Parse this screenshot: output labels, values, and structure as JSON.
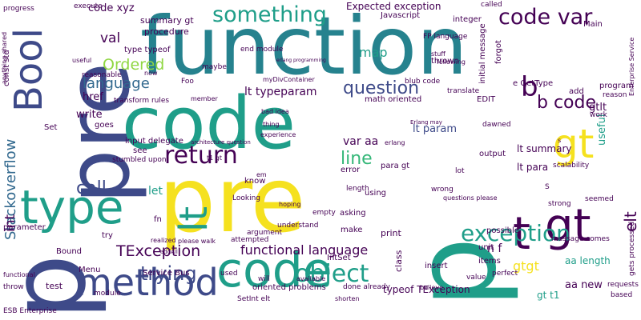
{
  "palette": {
    "yellow": "#f5e11f",
    "teal": "#1f9e89",
    "navy": "#3e4a89",
    "purple": "#440154",
    "green": "#35b779",
    "lime": "#90d743",
    "slate": "#31688e",
    "blue": "#26828e"
  },
  "words": [
    "function",
    "pre",
    "code",
    "pre",
    "p",
    "p",
    "code",
    "type",
    "method",
    "Bool",
    "gt",
    "t",
    "gt",
    "object",
    "exception",
    "return",
    "something",
    "code var",
    "question",
    "b code",
    "lt",
    "call",
    "trying",
    "TException",
    "line",
    "var aa",
    "b",
    "Ordered",
    "language",
    "map",
    "val",
    "href",
    "write",
    "Stackoverflow",
    "int",
    "functional language",
    "lt typeparam",
    "lt param",
    "lt summary",
    "lt para",
    "gt t1",
    "elt",
    "aa new",
    "typeof TException",
    "gtgt",
    "aa length",
    "gtlt",
    "useful",
    "code xyz",
    "summary gt",
    "procedure",
    "type typeof",
    "Expected exception",
    "execute",
    "end module",
    "erlang programming",
    "Javascript",
    "integer",
    "FP language",
    "thrown",
    "called",
    "Main",
    "Enterprise Service",
    "Set",
    "let",
    "n f",
    "insert",
    "IntSet",
    "print",
    "make",
    "class",
    "using",
    "error",
    "para gt",
    "output",
    "scalability",
    "unit",
    "Menu",
    "used",
    "Service Bus",
    "test",
    "fn",
    "try",
    "Bound",
    "Foo",
    "now",
    "maybe",
    "member",
    "transform rules",
    "input delegate",
    "see",
    "architecture question",
    "bad idea",
    "experience",
    "thing",
    "Erlang may",
    "stuff",
    "following",
    "useful",
    "translate",
    "blub code",
    "t1 gt",
    "em",
    "hoping",
    "asking",
    "wrong",
    "questions please",
    "possible",
    "items",
    "perfect",
    "value",
    "oriented problems",
    "SetInt elt",
    "done already",
    "believe",
    "shorten",
    "will",
    "available",
    "understand",
    "argument",
    "Looking",
    "attempted",
    "realized",
    "please walk",
    "addAll",
    "module",
    "work",
    "program",
    "reason",
    "add",
    "seemed",
    "strong",
    "requests",
    "message comes",
    "gets processed",
    "based",
    "anything shared",
    "const std",
    "parameter",
    "functional",
    "ESB Enterprise",
    "throw",
    "progress",
    "reasonable",
    "stumbled upon",
    "myDivContainer",
    "goes",
    "length",
    "empty",
    "initial message",
    "forgot",
    "e GetType",
    "dawned",
    "S",
    "lot",
    "know",
    "erlang",
    "math oriented",
    "EDIT",
    "s"
  ]
}
